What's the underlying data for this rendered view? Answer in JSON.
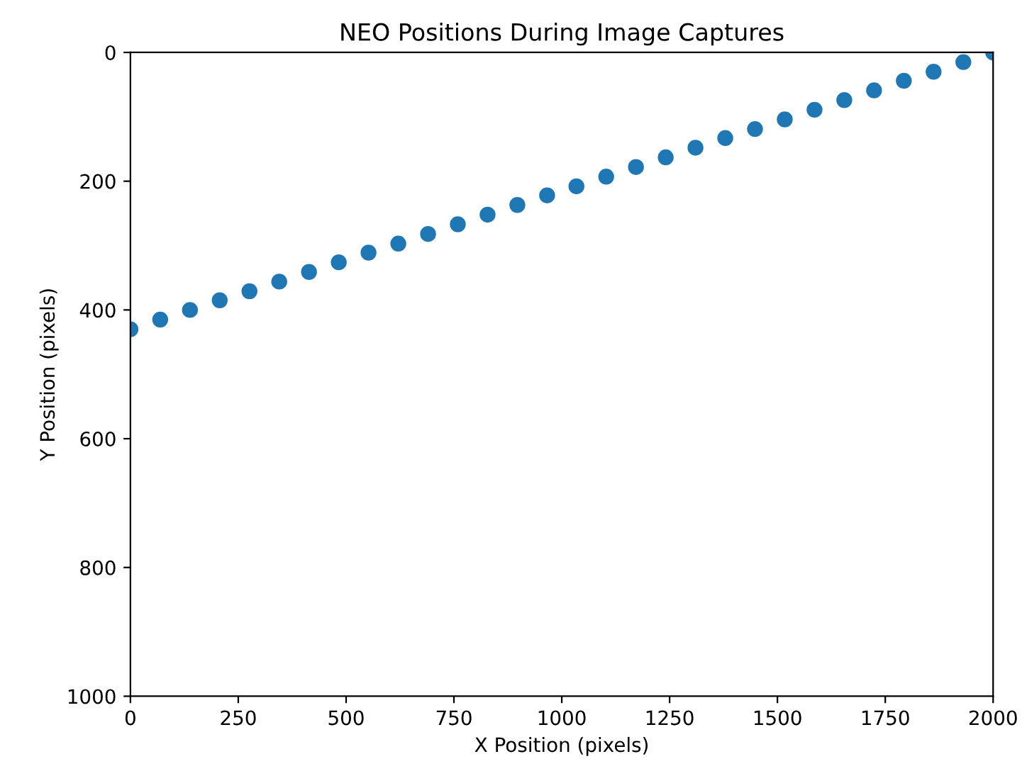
{
  "chart_data": {
    "type": "scatter",
    "title": "NEO Positions During Image Captures",
    "xlabel": "X Position (pixels)",
    "ylabel": "Y Position (pixels)",
    "x": [
      0,
      69,
      138,
      207,
      276,
      345,
      414,
      483,
      552,
      621,
      690,
      759,
      828,
      897,
      966,
      1034,
      1103,
      1172,
      1241,
      1310,
      1379,
      1448,
      1517,
      1586,
      1655,
      1724,
      1793,
      1862,
      1931,
      2000
    ],
    "series": [
      {
        "color": "#1f77b4",
        "values": [
          430,
          415,
          400,
          385,
          371,
          356,
          341,
          326,
          311,
          297,
          282,
          267,
          252,
          237,
          222,
          208,
          193,
          178,
          163,
          148,
          133,
          119,
          104,
          89,
          74,
          59,
          44,
          30,
          15,
          0
        ]
      }
    ],
    "xlim": [
      0,
      2000
    ],
    "xticks": [
      0,
      250,
      500,
      750,
      1000,
      1250,
      1500,
      1750,
      2000
    ],
    "ylim": [
      1000,
      0
    ],
    "yticks": [
      0,
      200,
      400,
      600,
      800,
      1000
    ],
    "marker": "circle",
    "grid": false,
    "legend": false
  }
}
